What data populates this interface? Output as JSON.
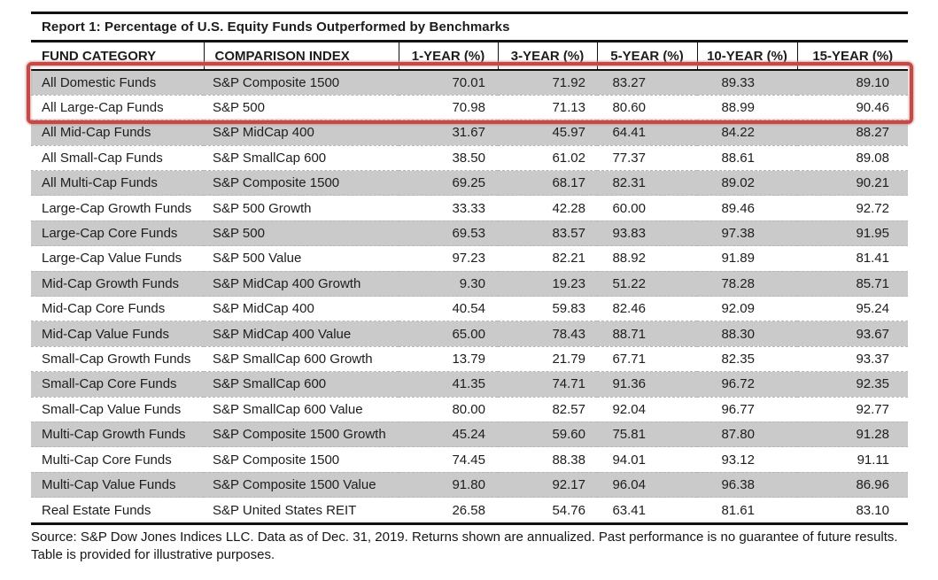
{
  "report": {
    "title": "Report 1: Percentage of U.S. Equity Funds Outperformed by Benchmarks",
    "source_note": "Source: S&P Dow Jones Indices LLC.  Data as of Dec. 31, 2019.  Returns shown are annualized.  Past performance is no guarantee of future results.  Table is provided for illustrative purposes."
  },
  "chart_data": {
    "type": "table",
    "title": "Report 1: Percentage of U.S. Equity Funds Outperformed by Benchmarks",
    "columns": [
      "FUND CATEGORY",
      "COMPARISON INDEX",
      "1-YEAR (%)",
      "3-YEAR (%)",
      "5-YEAR (%)",
      "10-YEAR (%)",
      "15-YEAR (%)"
    ],
    "rows": [
      {
        "fund_category": "All Domestic Funds",
        "comparison_index": "S&P Composite 1500",
        "values": [
          "70.01",
          "71.92",
          "83.27",
          "89.33",
          "89.10"
        ],
        "highlighted": true
      },
      {
        "fund_category": "All Large-Cap Funds",
        "comparison_index": "S&P 500",
        "values": [
          "70.98",
          "71.13",
          "80.60",
          "88.99",
          "90.46"
        ],
        "highlighted": true
      },
      {
        "fund_category": "All Mid-Cap Funds",
        "comparison_index": "S&P MidCap 400",
        "values": [
          "31.67",
          "45.97",
          "64.41",
          "84.22",
          "88.27"
        ],
        "highlighted": false
      },
      {
        "fund_category": "All Small-Cap Funds",
        "comparison_index": "S&P SmallCap 600",
        "values": [
          "38.50",
          "61.02",
          "77.37",
          "88.61",
          "89.08"
        ],
        "highlighted": false
      },
      {
        "fund_category": "All Multi-Cap Funds",
        "comparison_index": "S&P Composite 1500",
        "values": [
          "69.25",
          "68.17",
          "82.31",
          "89.02",
          "90.21"
        ],
        "highlighted": false
      },
      {
        "fund_category": "Large-Cap Growth Funds",
        "comparison_index": "S&P 500 Growth",
        "values": [
          "33.33",
          "42.28",
          "60.00",
          "89.46",
          "92.72"
        ],
        "highlighted": false
      },
      {
        "fund_category": "Large-Cap Core Funds",
        "comparison_index": "S&P 500",
        "values": [
          "69.53",
          "83.57",
          "93.83",
          "97.38",
          "91.95"
        ],
        "highlighted": false
      },
      {
        "fund_category": "Large-Cap Value Funds",
        "comparison_index": "S&P 500 Value",
        "values": [
          "97.23",
          "82.21",
          "88.92",
          "91.89",
          "81.41"
        ],
        "highlighted": false
      },
      {
        "fund_category": "Mid-Cap Growth Funds",
        "comparison_index": "S&P MidCap 400 Growth",
        "values": [
          "9.30",
          "19.23",
          "51.22",
          "78.28",
          "85.71"
        ],
        "highlighted": false
      },
      {
        "fund_category": "Mid-Cap Core Funds",
        "comparison_index": "S&P MidCap 400",
        "values": [
          "40.54",
          "59.83",
          "82.46",
          "92.09",
          "95.24"
        ],
        "highlighted": false
      },
      {
        "fund_category": "Mid-Cap Value Funds",
        "comparison_index": "S&P MidCap 400 Value",
        "values": [
          "65.00",
          "78.43",
          "88.71",
          "88.30",
          "93.67"
        ],
        "highlighted": false
      },
      {
        "fund_category": "Small-Cap Growth Funds",
        "comparison_index": "S&P SmallCap 600 Growth",
        "values": [
          "13.79",
          "21.79",
          "67.71",
          "82.35",
          "93.37"
        ],
        "highlighted": false
      },
      {
        "fund_category": "Small-Cap Core Funds",
        "comparison_index": "S&P SmallCap 600",
        "values": [
          "41.35",
          "74.71",
          "91.36",
          "96.72",
          "92.35"
        ],
        "highlighted": false
      },
      {
        "fund_category": "Small-Cap Value Funds",
        "comparison_index": "S&P SmallCap 600 Value",
        "values": [
          "80.00",
          "82.57",
          "92.04",
          "96.77",
          "92.77"
        ],
        "highlighted": false
      },
      {
        "fund_category": "Multi-Cap Growth Funds",
        "comparison_index": "S&P Composite 1500 Growth",
        "values": [
          "45.24",
          "59.60",
          "75.81",
          "87.80",
          "91.28"
        ],
        "highlighted": false
      },
      {
        "fund_category": "Multi-Cap Core Funds",
        "comparison_index": "S&P Composite 1500",
        "values": [
          "74.45",
          "88.38",
          "94.01",
          "93.12",
          "91.11"
        ],
        "highlighted": false
      },
      {
        "fund_category": "Multi-Cap Value Funds",
        "comparison_index": "S&P Composite 1500 Value",
        "values": [
          "91.80",
          "92.17",
          "96.04",
          "96.38",
          "86.96"
        ],
        "highlighted": false
      },
      {
        "fund_category": "Real Estate Funds",
        "comparison_index": "S&P United States REIT",
        "values": [
          "26.58",
          "54.76",
          "63.41",
          "81.61",
          "83.10"
        ],
        "highlighted": false
      }
    ],
    "highlight_color": "#c14b48",
    "stripe_color": "#cbcaca",
    "layout": {
      "legend": "none",
      "grid": "row-stripes",
      "highlighted_rows": [
        0,
        1
      ]
    }
  }
}
